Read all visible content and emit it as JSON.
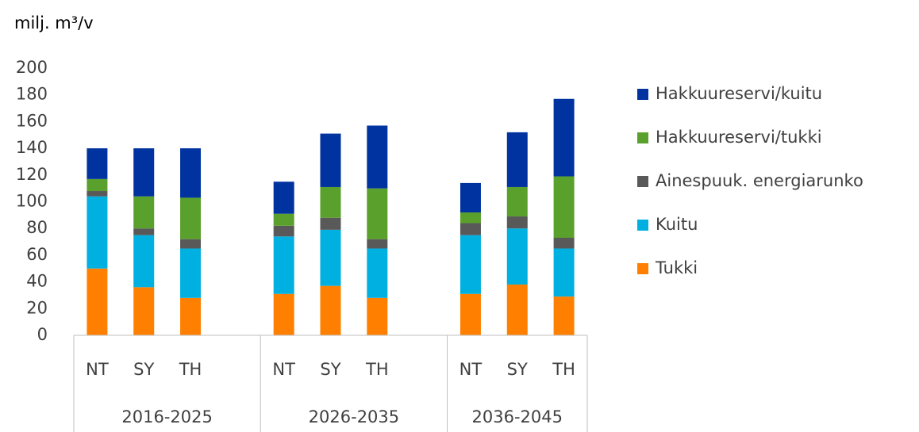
{
  "chart_data": {
    "type": "stacked_bar",
    "title": "milj. m³/v",
    "groups": [
      "2016-2025",
      "2026-2035",
      "2036-2045"
    ],
    "categories": [
      "NT",
      "SY",
      "TH",
      "NT",
      "SY",
      "TH",
      "NT",
      "SY",
      "TH"
    ],
    "series": [
      {
        "name": "Tukki",
        "color": "#ff8000",
        "values": [
          50,
          36,
          28,
          31,
          37,
          28,
          31,
          38,
          29
        ]
      },
      {
        "name": "Kuitu",
        "color": "#00b0e0",
        "values": [
          54,
          39,
          37,
          43,
          42,
          37,
          44,
          42,
          36
        ]
      },
      {
        "name": "Ainespuuk. energiarunko",
        "color": "#595959",
        "values": [
          4,
          5,
          7,
          8,
          9,
          7,
          9,
          9,
          8
        ]
      },
      {
        "name": "Hakkuureservi/tukki",
        "color": "#5aa02c",
        "values": [
          9,
          24,
          31,
          9,
          23,
          38,
          8,
          22,
          46
        ]
      },
      {
        "name": "Hakkuureservi/kuitu",
        "color": "#0033a0",
        "values": [
          23,
          36,
          37,
          24,
          40,
          47,
          22,
          41,
          58
        ]
      }
    ],
    "ylim": [
      0,
      200
    ],
    "yticks": [
      0,
      20,
      40,
      60,
      80,
      100,
      120,
      140,
      160,
      180,
      200
    ],
    "grid": false,
    "legend": "right"
  }
}
